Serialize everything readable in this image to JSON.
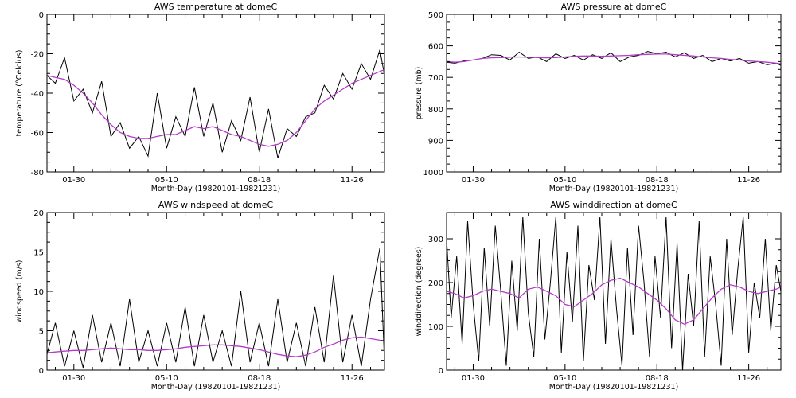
{
  "colors": {
    "raw_series": "#000000",
    "smoothed_series": "#b43cc8",
    "background": "#ffffff"
  },
  "chart_data": [
    {
      "type": "line",
      "title": "AWS temperature at domeC",
      "xlabel": "Month-Day (19820101-19821231)",
      "ylabel": "temperature (°Celcius)",
      "xlim": [
        1,
        365
      ],
      "ylim": [
        -80,
        0
      ],
      "y_inverted": false,
      "x_tick_values": [
        30,
        130,
        230,
        330
      ],
      "x_tick_labels": [
        "01-30",
        "05-10",
        "08-18",
        "11-26"
      ],
      "y_tick_values": [
        -80,
        -60,
        -40,
        -20,
        0
      ],
      "y_tick_labels": [
        "-80",
        "-60",
        "-40",
        "-20",
        "0"
      ],
      "series": [
        {
          "name": "raw",
          "x": [
            1,
            10,
            20,
            30,
            40,
            50,
            60,
            70,
            80,
            90,
            100,
            110,
            120,
            130,
            140,
            150,
            160,
            170,
            180,
            190,
            200,
            210,
            220,
            230,
            240,
            250,
            260,
            270,
            280,
            290,
            300,
            310,
            320,
            330,
            340,
            350,
            360,
            365
          ],
          "y": [
            -31,
            -35,
            -22,
            -44,
            -38,
            -50,
            -34,
            -62,
            -55,
            -68,
            -62,
            -72,
            -40,
            -68,
            -52,
            -62,
            -37,
            -62,
            -45,
            -70,
            -54,
            -64,
            -42,
            -70,
            -48,
            -73,
            -58,
            -62,
            -52,
            -50,
            -36,
            -43,
            -30,
            -38,
            -25,
            -33,
            -18,
            -31
          ]
        },
        {
          "name": "smoothed",
          "x": [
            1,
            10,
            20,
            30,
            40,
            50,
            60,
            70,
            80,
            90,
            100,
            110,
            120,
            130,
            140,
            150,
            160,
            170,
            180,
            190,
            200,
            210,
            220,
            230,
            240,
            250,
            260,
            270,
            280,
            290,
            300,
            310,
            320,
            330,
            340,
            350,
            360,
            365
          ],
          "y": [
            -31,
            -32,
            -33,
            -36,
            -40,
            -45,
            -51,
            -56,
            -60,
            -62,
            -63,
            -63,
            -62,
            -61,
            -61,
            -59,
            -57,
            -58,
            -57,
            -59,
            -61,
            -62,
            -64,
            -66,
            -67,
            -66,
            -64,
            -60,
            -54,
            -48,
            -44,
            -41,
            -38,
            -35,
            -33,
            -31,
            -29,
            -28
          ]
        }
      ]
    },
    {
      "type": "line",
      "title": "AWS pressure at domeC",
      "xlabel": "Month-Day (19820101-19821231)",
      "ylabel": "pressure (mb)",
      "xlim": [
        1,
        365
      ],
      "ylim": [
        1000,
        500
      ],
      "y_inverted": true,
      "x_tick_values": [
        30,
        130,
        230,
        330
      ],
      "x_tick_labels": [
        "01-30",
        "05-10",
        "08-18",
        "11-26"
      ],
      "y_tick_values": [
        500,
        600,
        700,
        800,
        900,
        1000
      ],
      "y_tick_labels": [
        "500",
        "600",
        "700",
        "800",
        "900",
        "1000"
      ],
      "series": [
        {
          "name": "raw",
          "x": [
            1,
            10,
            20,
            30,
            40,
            50,
            60,
            70,
            80,
            90,
            100,
            110,
            120,
            130,
            140,
            150,
            160,
            170,
            180,
            190,
            200,
            210,
            220,
            230,
            240,
            250,
            260,
            270,
            280,
            290,
            300,
            310,
            320,
            330,
            340,
            350,
            360,
            365
          ],
          "y": [
            652,
            655,
            648,
            645,
            640,
            628,
            630,
            645,
            620,
            640,
            635,
            650,
            625,
            640,
            630,
            645,
            628,
            640,
            622,
            650,
            635,
            630,
            618,
            625,
            620,
            635,
            622,
            640,
            630,
            650,
            640,
            648,
            640,
            655,
            650,
            660,
            655,
            662
          ]
        },
        {
          "name": "smoothed",
          "x": [
            1,
            10,
            20,
            30,
            40,
            50,
            60,
            70,
            80,
            90,
            100,
            110,
            120,
            130,
            140,
            150,
            160,
            170,
            180,
            190,
            200,
            210,
            220,
            230,
            240,
            250,
            260,
            270,
            280,
            290,
            300,
            310,
            320,
            330,
            340,
            350,
            360,
            365
          ],
          "y": [
            650,
            652,
            650,
            645,
            640,
            638,
            637,
            636,
            635,
            636,
            637,
            638,
            637,
            635,
            633,
            632,
            632,
            633,
            632,
            631,
            630,
            628,
            627,
            626,
            626,
            628,
            630,
            632,
            635,
            638,
            640,
            643,
            645,
            648,
            650,
            652,
            655,
            657
          ]
        }
      ]
    },
    {
      "type": "line",
      "title": "AWS windspeed at domeC",
      "xlabel": "Month-Day (19820101-19821231)",
      "ylabel": "windspeed (m/s)",
      "xlim": [
        1,
        365
      ],
      "ylim": [
        0,
        20
      ],
      "y_inverted": false,
      "x_tick_values": [
        30,
        130,
        230,
        330
      ],
      "x_tick_labels": [
        "01-30",
        "05-10",
        "08-18",
        "11-26"
      ],
      "y_tick_values": [
        0,
        5,
        10,
        15,
        20
      ],
      "y_tick_labels": [
        "0",
        "5",
        "10",
        "15",
        "20"
      ],
      "series": [
        {
          "name": "raw",
          "x": [
            1,
            10,
            20,
            30,
            40,
            50,
            60,
            70,
            80,
            90,
            100,
            110,
            120,
            130,
            140,
            150,
            160,
            170,
            180,
            190,
            200,
            210,
            220,
            230,
            240,
            250,
            260,
            270,
            280,
            290,
            300,
            310,
            320,
            330,
            340,
            350,
            360,
            365
          ],
          "y": [
            2,
            6,
            0.5,
            5,
            0.3,
            7,
            1,
            6,
            0.5,
            9,
            1,
            5,
            0.5,
            6,
            1,
            8,
            0.5,
            7,
            1,
            5,
            0.5,
            10,
            1,
            6,
            0.5,
            9,
            1,
            6,
            0.5,
            8,
            1,
            12,
            1,
            7,
            0.5,
            9,
            15.5,
            1
          ]
        },
        {
          "name": "smoothed",
          "x": [
            1,
            10,
            20,
            30,
            40,
            50,
            60,
            70,
            80,
            90,
            100,
            110,
            120,
            130,
            140,
            150,
            160,
            170,
            180,
            190,
            200,
            210,
            220,
            230,
            240,
            250,
            260,
            270,
            280,
            290,
            300,
            310,
            320,
            330,
            340,
            350,
            360,
            365
          ],
          "y": [
            2.2,
            2.3,
            2.4,
            2.5,
            2.5,
            2.6,
            2.7,
            2.8,
            2.7,
            2.6,
            2.6,
            2.5,
            2.5,
            2.6,
            2.7,
            2.9,
            3.0,
            3.1,
            3.2,
            3.2,
            3.1,
            3.0,
            2.8,
            2.6,
            2.3,
            2.0,
            1.8,
            1.7,
            1.9,
            2.3,
            2.9,
            3.3,
            3.8,
            4.1,
            4.2,
            4.0,
            3.8,
            3.7
          ]
        }
      ]
    },
    {
      "type": "line",
      "title": "AWS winddirection at domeC",
      "xlabel": "Month-Day (19820101-19821231)",
      "ylabel": "winddirection (degrees)",
      "xlim": [
        1,
        365
      ],
      "ylim": [
        0,
        360
      ],
      "y_inverted": false,
      "x_tick_values": [
        30,
        130,
        230,
        330
      ],
      "x_tick_labels": [
        "01-30",
        "05-10",
        "08-18",
        "11-26"
      ],
      "y_tick_values": [
        0,
        100,
        200,
        300
      ],
      "y_tick_labels": [
        "0",
        "100",
        "200",
        "300"
      ],
      "series": [
        {
          "name": "raw",
          "x": [
            1,
            6,
            12,
            18,
            24,
            30,
            36,
            42,
            48,
            54,
            60,
            66,
            72,
            78,
            84,
            90,
            96,
            102,
            108,
            114,
            120,
            126,
            132,
            138,
            144,
            150,
            156,
            162,
            168,
            174,
            180,
            186,
            192,
            198,
            204,
            210,
            216,
            222,
            228,
            234,
            240,
            246,
            252,
            258,
            264,
            270,
            276,
            282,
            288,
            294,
            300,
            306,
            312,
            318,
            324,
            330,
            336,
            342,
            348,
            354,
            360,
            365
          ],
          "y": [
            300,
            120,
            260,
            60,
            340,
            150,
            20,
            280,
            100,
            330,
            180,
            10,
            250,
            90,
            350,
            130,
            30,
            300,
            70,
            200,
            350,
            40,
            270,
            110,
            330,
            20,
            240,
            160,
            350,
            60,
            300,
            140,
            10,
            280,
            80,
            330,
            200,
            30,
            260,
            120,
            350,
            50,
            290,
            0,
            220,
            100,
            340,
            30,
            260,
            150,
            10,
            300,
            80,
            230,
            350,
            40,
            200,
            120,
            300,
            90,
            240,
            180
          ]
        },
        {
          "name": "smoothed",
          "x": [
            1,
            10,
            20,
            30,
            40,
            50,
            60,
            70,
            80,
            90,
            100,
            110,
            120,
            130,
            140,
            150,
            160,
            170,
            180,
            190,
            200,
            210,
            220,
            230,
            240,
            250,
            260,
            270,
            280,
            290,
            300,
            310,
            320,
            330,
            340,
            350,
            360,
            365
          ],
          "y": [
            180,
            175,
            165,
            170,
            180,
            185,
            180,
            175,
            165,
            185,
            190,
            180,
            170,
            150,
            145,
            160,
            175,
            195,
            205,
            210,
            200,
            190,
            175,
            160,
            140,
            115,
            105,
            115,
            140,
            165,
            185,
            195,
            190,
            180,
            175,
            180,
            185,
            190
          ]
        }
      ]
    }
  ]
}
